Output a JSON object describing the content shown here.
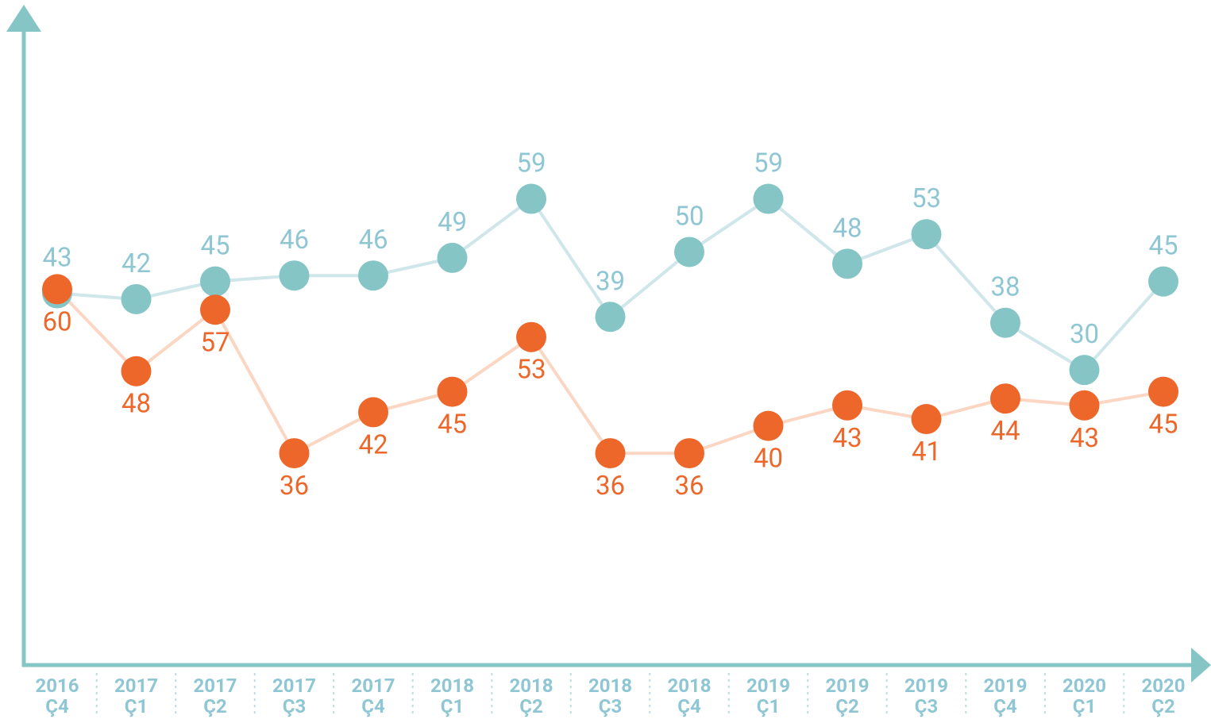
{
  "chart_data": {
    "type": "line",
    "categories": [
      [
        "2016",
        "Ç4"
      ],
      [
        "2017",
        "Ç1"
      ],
      [
        "2017",
        "Ç2"
      ],
      [
        "2017",
        "Ç3"
      ],
      [
        "2017",
        "Ç4"
      ],
      [
        "2018",
        "Ç1"
      ],
      [
        "2018",
        "Ç2"
      ],
      [
        "2018",
        "Ç3"
      ],
      [
        "2018",
        "Ç4"
      ],
      [
        "2019",
        "Ç1"
      ],
      [
        "2019",
        "Ç2"
      ],
      [
        "2019",
        "Ç3"
      ],
      [
        "2019",
        "Ç4"
      ],
      [
        "2020",
        "Ç1"
      ],
      [
        "2020",
        "Ç2"
      ]
    ],
    "series": [
      {
        "color": "#86c5c6",
        "line_color": "#cfe6ea",
        "label_color": "#8ec6d3",
        "values": [
          43,
          42,
          45,
          46,
          46,
          49,
          59,
          39,
          50,
          59,
          48,
          53,
          38,
          30,
          45
        ]
      },
      {
        "color": "#ee672a",
        "line_color": "#fbd6c3",
        "label_color": "#ee672a",
        "axis": "y2",
        "values": [
          60,
          48,
          57,
          36,
          42,
          45,
          53,
          36,
          36,
          40,
          43,
          41,
          44,
          43,
          45
        ]
      }
    ],
    "ylim": [
      -20,
      90
    ],
    "y2lim": [
      5,
      100
    ],
    "grid": false
  }
}
